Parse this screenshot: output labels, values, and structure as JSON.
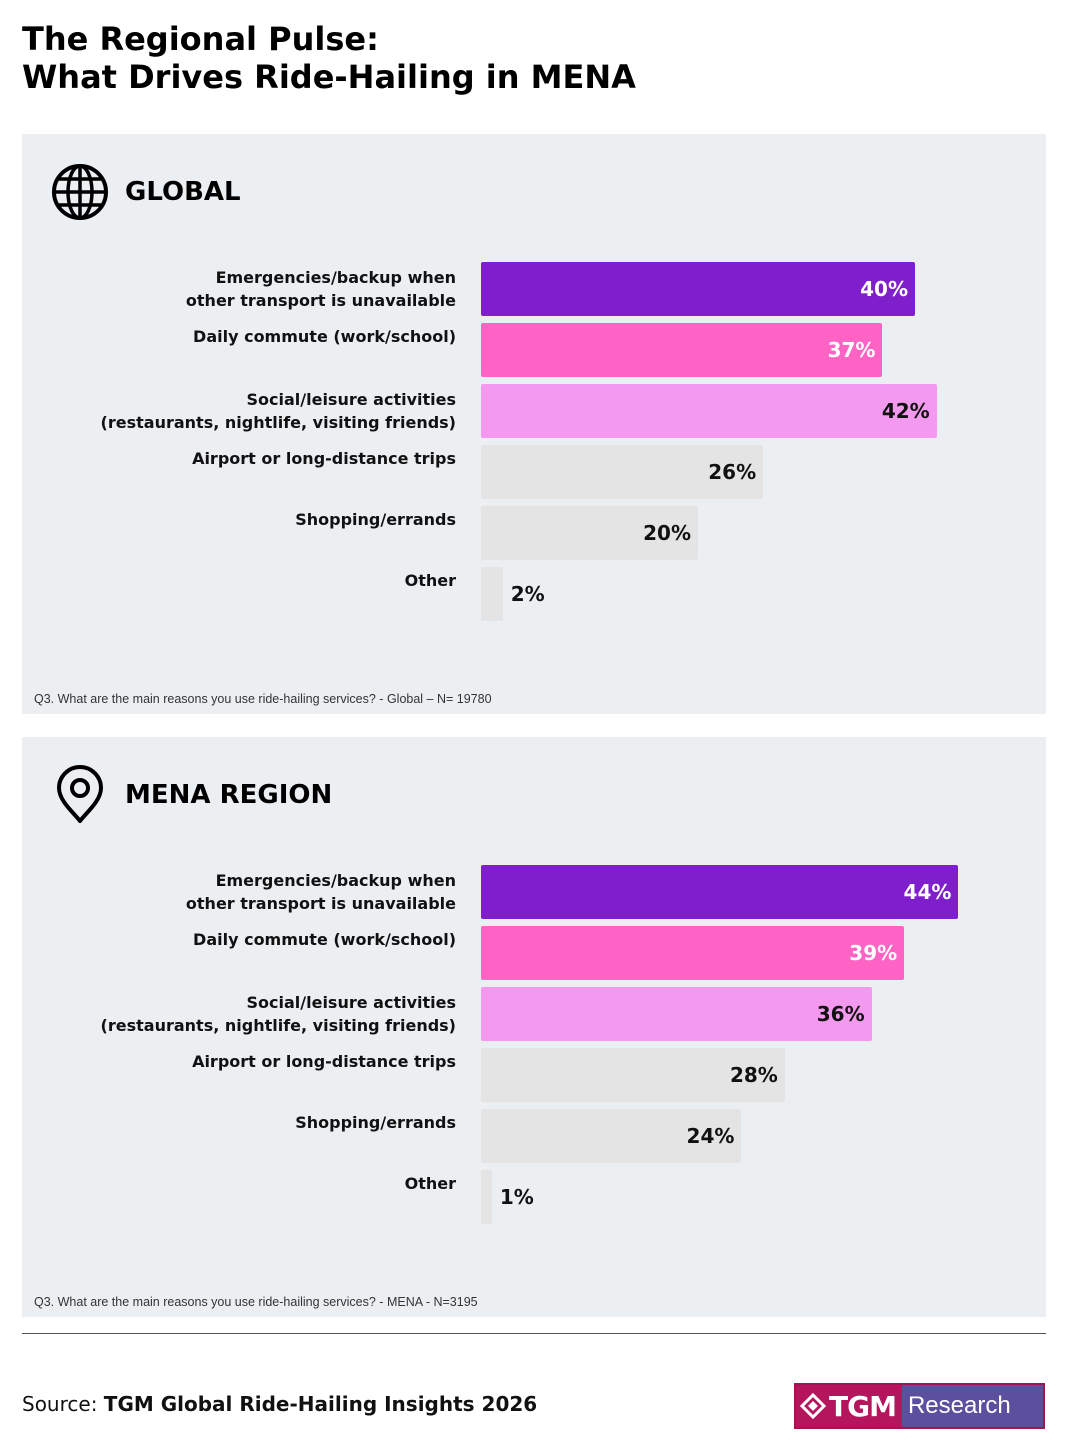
{
  "title_line1": "The Regional Pulse:",
  "title_line2": "What Drives Ride-Hailing in MENA",
  "colors": {
    "purple": "#7f1ecb",
    "pink": "#ff63c4",
    "light_pink": "#f499f0",
    "grey": "#e4e4e4",
    "panel_bg": "#eceff2"
  },
  "panels": [
    {
      "heading": "GLOBAL",
      "icon": "globe-icon",
      "note": "Q3. What are the main reasons you use ride-hailing services? - Global – N= 19780"
    },
    {
      "heading": "MENA REGION",
      "icon": "location-pin-icon",
      "note": "Q3. What are the main reasons you use ride-hailing services? - MENA - N=3195"
    }
  ],
  "chart_data": [
    {
      "type": "bar",
      "orientation": "horizontal",
      "title": "GLOBAL",
      "categories": [
        "Emergencies/backup when\nother transport is unavailable",
        "Daily commute (work/school)",
        "Social/leisure activities\n(restaurants, nightlife, visiting friends)",
        "Airport or long-distance trips",
        "Shopping/errands",
        "Other"
      ],
      "values": [
        40,
        37,
        42,
        26,
        20,
        2
      ],
      "value_labels": [
        "40%",
        "37%",
        "42%",
        "26%",
        "20%",
        "2%"
      ],
      "bar_colors": [
        "#7f1ecb",
        "#ff63c4",
        "#f499f0",
        "#e4e4e4",
        "#e4e4e4",
        "#e4e4e4"
      ],
      "label_colors": [
        "#ffffff",
        "#ffffff",
        "#111111",
        "#111111",
        "#111111",
        "#111111"
      ],
      "unit": "%",
      "xlim": [
        0,
        50
      ]
    },
    {
      "type": "bar",
      "orientation": "horizontal",
      "title": "MENA REGION",
      "categories": [
        "Emergencies/backup when\nother transport is unavailable",
        "Daily commute (work/school)",
        "Social/leisure activities\n(restaurants, nightlife, visiting friends)",
        "Airport or long-distance trips",
        "Shopping/errands",
        "Other"
      ],
      "values": [
        44,
        39,
        36,
        28,
        24,
        1
      ],
      "value_labels": [
        "44%",
        "39%",
        "36%",
        "28%",
        "24%",
        "1%"
      ],
      "bar_colors": [
        "#7f1ecb",
        "#ff63c4",
        "#f499f0",
        "#e4e4e4",
        "#e4e4e4",
        "#e4e4e4"
      ],
      "label_colors": [
        "#ffffff",
        "#ffffff",
        "#111111",
        "#111111",
        "#111111",
        "#111111"
      ],
      "unit": "%",
      "xlim": [
        0,
        50
      ]
    }
  ],
  "source_label": "Source:",
  "source_text": "TGM Global Ride-Hailing Insights 2026",
  "logo_left": "TGM",
  "logo_right": "Research"
}
